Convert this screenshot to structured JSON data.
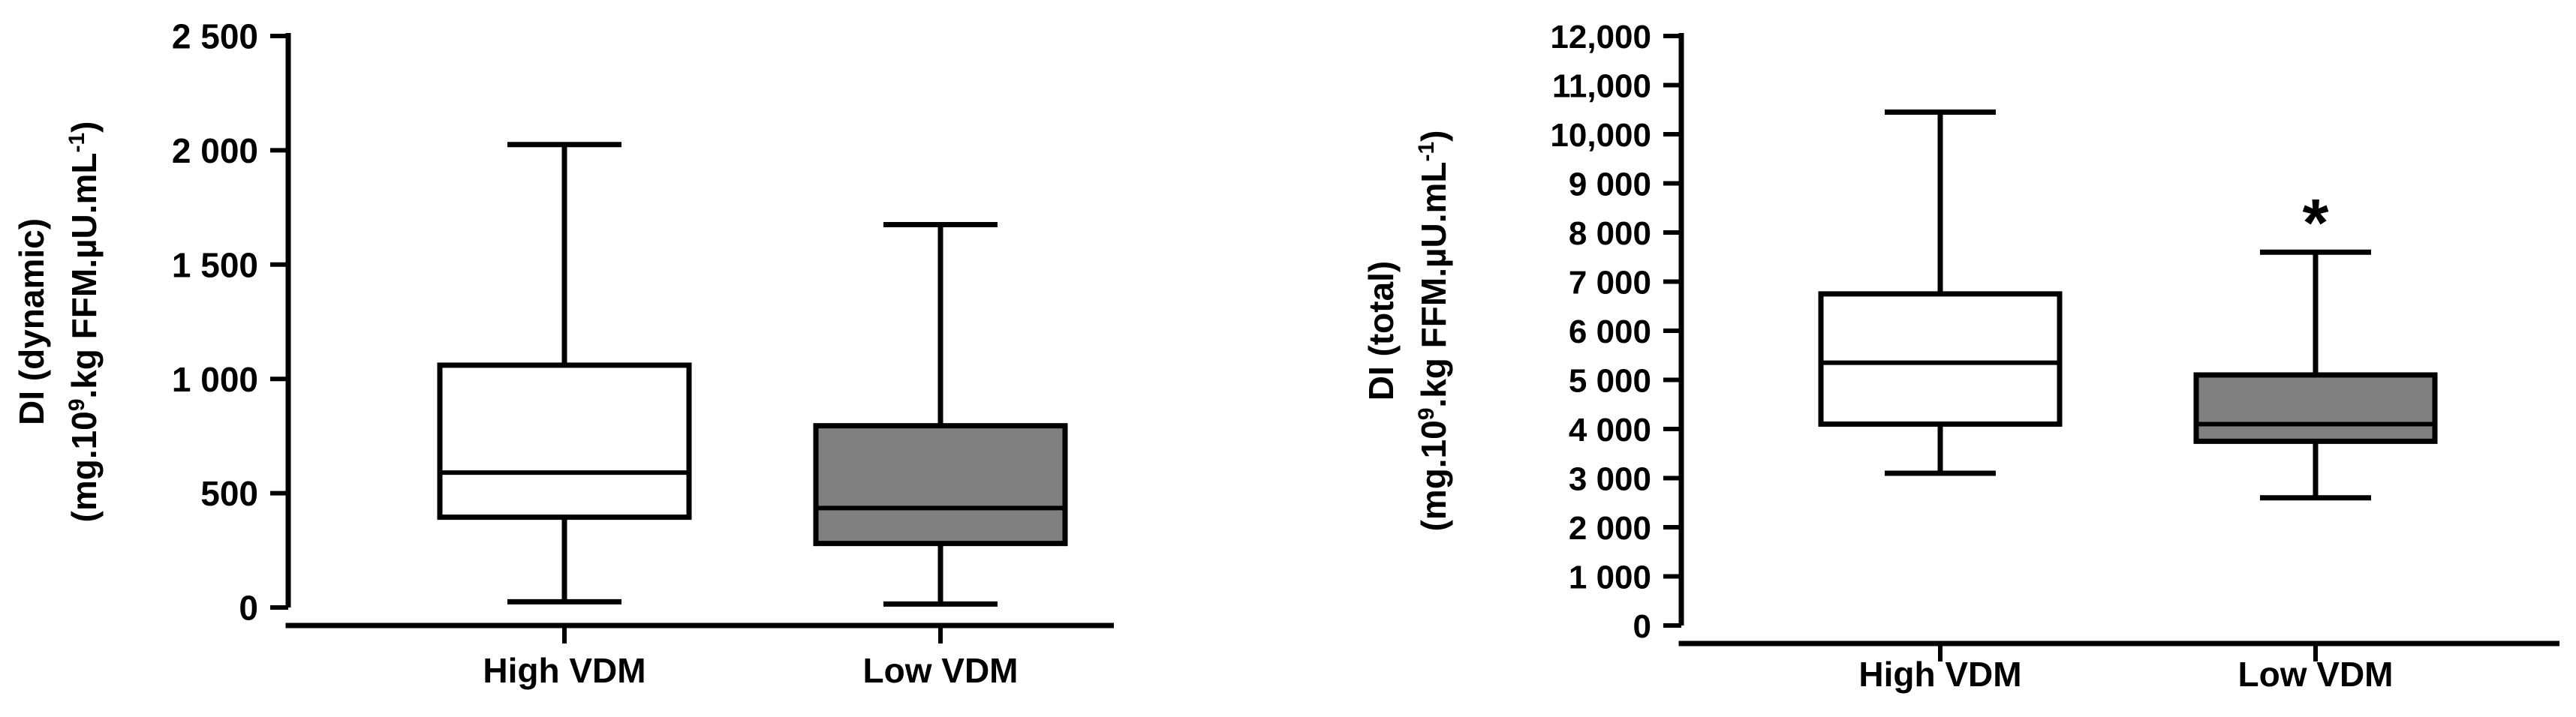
{
  "chart_data": [
    {
      "type": "box",
      "ylabel": {
        "line1": "DI (dynamic)",
        "line2_prefix": "(mg.10",
        "line2_sup1": "9",
        "line2_mid": ".kg FFM.µU.mL",
        "line2_sup2": "-1",
        "line2_suffix": ")"
      },
      "ylim": [
        0,
        2500
      ],
      "yticks": [
        {
          "value": 0,
          "label": "0"
        },
        {
          "value": 500,
          "label": "500"
        },
        {
          "value": 1000,
          "label": "1 000"
        },
        {
          "value": 1500,
          "label": "1 500"
        },
        {
          "value": 2000,
          "label": "2 000"
        },
        {
          "value": 2500,
          "label": "2 500"
        }
      ],
      "categories": [
        "High VDM",
        "Low VDM"
      ],
      "boxes": [
        {
          "name": "High VDM",
          "min": 25,
          "q1": 395,
          "median": 590,
          "q3": 1060,
          "max": 2025,
          "fill": "#ffffff"
        },
        {
          "name": "Low VDM",
          "min": 15,
          "q1": 280,
          "median": 435,
          "q3": 795,
          "max": 1675,
          "fill": "#808080"
        }
      ],
      "annotations": []
    },
    {
      "type": "box",
      "ylabel": {
        "line1": "DI (total)",
        "line2_prefix": "(mg.10",
        "line2_sup1": "9",
        "line2_mid": ".kg FFM.µU.mL",
        "line2_sup2": "-1",
        "line2_suffix": ")"
      },
      "ylim": [
        0,
        12000
      ],
      "yticks": [
        {
          "value": 0,
          "label": "0"
        },
        {
          "value": 1000,
          "label": "1 000"
        },
        {
          "value": 2000,
          "label": "2 000"
        },
        {
          "value": 3000,
          "label": "3 000"
        },
        {
          "value": 4000,
          "label": "4 000"
        },
        {
          "value": 5000,
          "label": "5 000"
        },
        {
          "value": 6000,
          "label": "6 000"
        },
        {
          "value": 7000,
          "label": "7 000"
        },
        {
          "value": 8000,
          "label": "8 000"
        },
        {
          "value": 9000,
          "label": "9 000"
        },
        {
          "value": 10000,
          "label": "10,000"
        },
        {
          "value": 11000,
          "label": "11,000"
        },
        {
          "value": 12000,
          "label": "12,000"
        }
      ],
      "categories": [
        "High VDM",
        "Low VDM"
      ],
      "boxes": [
        {
          "name": "High VDM",
          "min": 3100,
          "q1": 4100,
          "median": 5350,
          "q3": 6750,
          "max": 10450,
          "fill": "#ffffff"
        },
        {
          "name": "Low VDM",
          "min": 2600,
          "q1": 3750,
          "median": 4100,
          "q3": 5100,
          "max": 7600,
          "fill": "#808080"
        }
      ],
      "annotations": [
        {
          "category": "Low VDM",
          "text": "*"
        }
      ]
    }
  ]
}
